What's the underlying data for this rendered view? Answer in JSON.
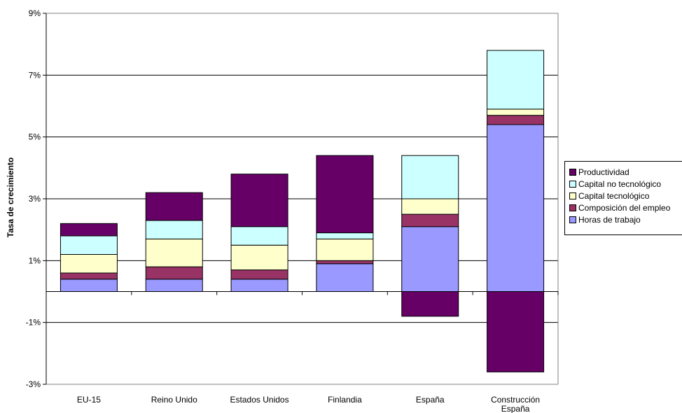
{
  "chart_data": {
    "type": "bar",
    "stacked": true,
    "title": "",
    "xlabel": "",
    "ylabel": "Tasa de crecimiento",
    "ylim": [
      -3,
      9
    ],
    "yticks": [
      -3,
      -1,
      1,
      3,
      5,
      7,
      9
    ],
    "ytick_labels": [
      "-3%",
      "-1%",
      "1%",
      "3%",
      "5%",
      "7%",
      "9%"
    ],
    "categories": [
      "EU-15",
      "Reino Unido",
      "Estados Unidos",
      "Finlandia",
      "España",
      "Construcción España"
    ],
    "series": [
      {
        "name": "Horas de trabajo",
        "color": "#9999ff",
        "values": [
          0.4,
          0.4,
          0.4,
          0.9,
          2.1,
          5.4
        ]
      },
      {
        "name": "Composición del empleo",
        "color": "#993366",
        "values": [
          0.2,
          0.4,
          0.3,
          0.1,
          0.4,
          0.3
        ]
      },
      {
        "name": "Capital tecnológico",
        "color": "#ffffcc",
        "values": [
          0.6,
          0.9,
          0.8,
          0.7,
          0.5,
          0.2
        ]
      },
      {
        "name": "Capital no tecnológico",
        "color": "#ccffff",
        "values": [
          0.6,
          0.6,
          0.6,
          0.2,
          1.4,
          1.9
        ]
      },
      {
        "name": "Productividad",
        "color": "#660066",
        "values": [
          0.4,
          0.9,
          1.7,
          2.5,
          -0.8,
          -2.6
        ]
      }
    ],
    "grid": true,
    "legend_position": "right"
  }
}
